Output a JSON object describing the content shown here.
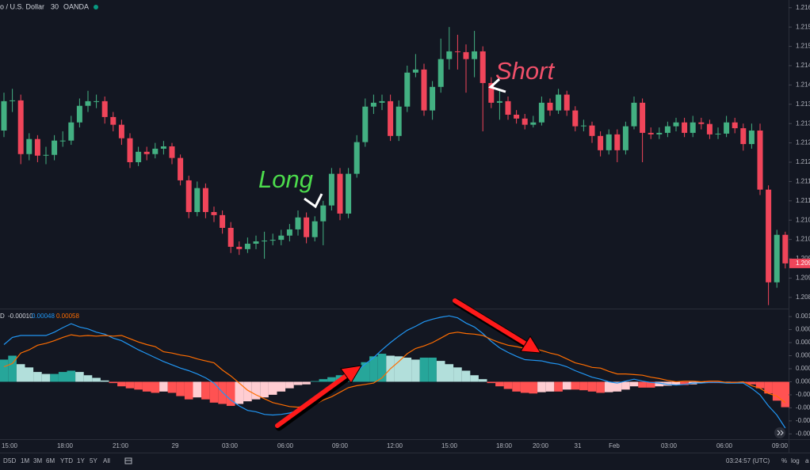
{
  "header": {
    "symbol": "o / U.S. Dollar",
    "interval": "30",
    "source": "OANDA"
  },
  "chart_data": [
    {
      "type": "candlestick",
      "open": [
        1.21282,
        1.21358,
        1.2136,
        1.21221,
        1.2126,
        1.21217,
        1.21219,
        1.21256,
        1.21256,
        1.21303,
        1.21346,
        1.21358,
        1.21358,
        1.21317,
        1.21297,
        1.21262,
        1.212,
        1.21227,
        1.21221,
        1.21235,
        1.21241,
        1.21211,
        1.21153,
        1.21071,
        1.21133,
        1.21071,
        1.21063,
        1.2103,
        1.20981,
        1.20975,
        1.20989,
        1.20995,
        1.20997,
        1.20999,
        1.2101,
        1.21026,
        1.21057,
        1.21006,
        1.21047,
        1.21088,
        1.2117,
        1.21067,
        1.2117,
        1.21252,
        1.21344,
        1.21354,
        1.21358,
        1.21268,
        1.21344,
        1.21432,
        1.2144,
        1.21334,
        1.21395,
        1.21467,
        1.21487,
        1.21485,
        1.21467,
        1.21487,
        1.21405,
        1.21354,
        1.21358,
        1.21323,
        1.21313,
        1.21297,
        1.21303,
        1.21354,
        1.21334,
        1.21375,
        1.21334,
        1.21293,
        1.21295,
        1.21268,
        1.21231,
        1.21272,
        1.21231,
        1.21293,
        1.21354,
        1.21276,
        1.21272,
        1.21276,
        1.21293,
        1.21303,
        1.21276,
        1.21303,
        1.21299,
        1.21272,
        1.21274,
        1.21303,
        1.21288,
        1.21247,
        1.21282,
        1.21129,
        1.20889,
        1.21012
      ],
      "high": [
        1.2138,
        1.2139,
        1.21375,
        1.21275,
        1.2127,
        1.2124,
        1.2127,
        1.2128,
        1.2132,
        1.21365,
        1.21385,
        1.21375,
        1.2137,
        1.2133,
        1.2131,
        1.21275,
        1.2124,
        1.2124,
        1.2125,
        1.21255,
        1.2125,
        1.2122,
        1.21165,
        1.2115,
        1.21145,
        1.21085,
        1.21075,
        1.21045,
        1.20995,
        1.21005,
        1.2101,
        1.2102,
        1.21015,
        1.21025,
        1.2104,
        1.21075,
        1.2107,
        1.2106,
        1.211,
        1.21185,
        1.21185,
        1.21185,
        1.2127,
        1.21365,
        1.21375,
        1.21375,
        1.21375,
        1.2136,
        1.2145,
        1.2148,
        1.21455,
        1.2141,
        1.2152,
        1.2155,
        1.2153,
        1.21505,
        1.2154,
        1.215,
        1.2142,
        1.2139,
        1.2137,
        1.21335,
        1.21325,
        1.2132,
        1.2137,
        1.21365,
        1.2139,
        1.21385,
        1.21345,
        1.2131,
        1.21305,
        1.2128,
        1.21285,
        1.21285,
        1.21305,
        1.2137,
        1.21365,
        1.2129,
        1.2129,
        1.21305,
        1.21315,
        1.21315,
        1.2132,
        1.21315,
        1.2131,
        1.2129,
        1.2132,
        1.21315,
        1.213,
        1.213,
        1.213,
        1.2114,
        1.21025,
        1.2102
      ],
      "low": [
        1.21265,
        1.2133,
        1.21195,
        1.21205,
        1.212,
        1.21195,
        1.21205,
        1.2124,
        1.21245,
        1.2129,
        1.2133,
        1.2134,
        1.213,
        1.2128,
        1.21245,
        1.21185,
        1.2119,
        1.21205,
        1.2121,
        1.2122,
        1.21195,
        1.2114,
        1.21055,
        1.2106,
        1.21055,
        1.21045,
        1.21015,
        1.20965,
        1.2096,
        1.20965,
        1.20975,
        1.2095,
        1.20985,
        1.20985,
        1.20995,
        1.2101,
        1.2099,
        1.20995,
        1.20985,
        1.21075,
        1.2105,
        1.21055,
        1.2116,
        1.2124,
        1.21325,
        1.21335,
        1.21255,
        1.21255,
        1.2133,
        1.2142,
        1.2132,
        1.2131,
        1.2138,
        1.2144,
        1.2144,
        1.2138,
        1.2142,
        1.2128,
        1.2134,
        1.2131,
        1.2131,
        1.213,
        1.21285,
        1.2129,
        1.21295,
        1.2132,
        1.21325,
        1.2132,
        1.2128,
        1.2128,
        1.2125,
        1.21215,
        1.2122,
        1.212,
        1.2122,
        1.21285,
        1.212,
        1.2126,
        1.2126,
        1.21265,
        1.2128,
        1.21265,
        1.21265,
        1.21285,
        1.2126,
        1.2126,
        1.21265,
        1.21275,
        1.2123,
        1.21235,
        1.21115,
        1.2083,
        1.20875,
        1.20925
      ],
      "close": [
        1.21358,
        1.2136,
        1.21221,
        1.2126,
        1.21217,
        1.21219,
        1.21256,
        1.21256,
        1.21303,
        1.21346,
        1.21358,
        1.21358,
        1.21317,
        1.21297,
        1.21262,
        1.212,
        1.21227,
        1.21221,
        1.21235,
        1.21241,
        1.21211,
        1.21153,
        1.21071,
        1.21133,
        1.21071,
        1.21063,
        1.2103,
        1.20981,
        1.20975,
        1.20989,
        1.20995,
        1.20997,
        1.20999,
        1.2101,
        1.21026,
        1.21057,
        1.21006,
        1.21047,
        1.21088,
        1.2117,
        1.21067,
        1.2117,
        1.21252,
        1.21344,
        1.21354,
        1.21358,
        1.21268,
        1.21344,
        1.21432,
        1.2144,
        1.21334,
        1.21395,
        1.21467,
        1.21487,
        1.21485,
        1.21467,
        1.21487,
        1.21405,
        1.21354,
        1.21358,
        1.21323,
        1.21313,
        1.21297,
        1.21303,
        1.21354,
        1.21334,
        1.21375,
        1.21334,
        1.21293,
        1.21295,
        1.21268,
        1.21231,
        1.21272,
        1.21231,
        1.21293,
        1.21354,
        1.21276,
        1.21272,
        1.21276,
        1.21293,
        1.21303,
        1.21276,
        1.21303,
        1.21299,
        1.21272,
        1.21274,
        1.21303,
        1.21288,
        1.21247,
        1.21282,
        1.21129,
        1.20889,
        1.21012,
        1.20938
      ],
      "up_color": "#43b082",
      "down_color": "#f0455a",
      "ylim": [
        1.20821,
        1.2162
      ],
      "yticks": [
        {
          "value": 1.216,
          "label": "1.216"
        },
        {
          "value": 1.2155,
          "label": "1.215"
        },
        {
          "value": 1.215,
          "label": "1.215"
        },
        {
          "value": 1.2145,
          "label": "1.214"
        },
        {
          "value": 1.214,
          "label": "1.214"
        },
        {
          "value": 1.2135,
          "label": "1.213"
        },
        {
          "value": 1.213,
          "label": "1.213"
        },
        {
          "value": 1.2125,
          "label": "1.212"
        },
        {
          "value": 1.212,
          "label": "1.212"
        },
        {
          "value": 1.2115,
          "label": "1.211"
        },
        {
          "value": 1.211,
          "label": "1.211"
        },
        {
          "value": 1.2105,
          "label": "1.210"
        },
        {
          "value": 1.21,
          "label": "1.210"
        },
        {
          "value": 1.2095,
          "label": "1.209"
        },
        {
          "value": 1.209,
          "label": "1.209"
        },
        {
          "value": 1.2085,
          "label": "1.208"
        }
      ],
      "last_label": "1.209",
      "annotations": [
        "Long",
        "Short"
      ],
      "x_labels": [
        "15:00",
        "18:00",
        "21:00",
        "29",
        "03:00",
        "06:00",
        "09:00",
        "12:00",
        "15:00",
        "18:00",
        "20:00",
        "31",
        "Feb",
        "03:00",
        "06:00",
        "09:00"
      ]
    },
    {
      "type": "macd",
      "legend_label": "D",
      "legend_values": [
        "-0.00010",
        "0.00048",
        "0.00058"
      ],
      "histogram": {
        "values": [
          0.00034,
          0.0004,
          0.00027,
          0.00022,
          0.00015,
          0.00012,
          0.00012,
          0.00015,
          0.00017,
          0.00015,
          0.0001,
          6e-05,
          2e-05,
          -2e-05,
          -7e-05,
          -0.0001,
          -0.00012,
          -0.00015,
          -0.00017,
          -0.00015,
          -0.00017,
          -0.00022,
          -0.00027,
          -0.00024,
          -0.00027,
          -0.00032,
          -0.00034,
          -0.00037,
          -0.00034,
          -0.0003,
          -0.00027,
          -0.00024,
          -0.0002,
          -0.00015,
          -0.0001,
          -5e-05,
          -4e-05,
          1e-05,
          4e-05,
          7e-05,
          0.0001,
          0.00015,
          0.00022,
          0.0003,
          0.00039,
          0.00043,
          0.0004,
          0.00039,
          0.00037,
          0.00034,
          0.00037,
          0.00037,
          0.00032,
          0.00027,
          0.00022,
          0.00017,
          0.0001,
          4e-05,
          -2e-05,
          -7e-05,
          -0.00011,
          -0.00015,
          -0.00017,
          -0.00018,
          -0.00016,
          -0.00015,
          -0.00015,
          -0.00012,
          -0.00012,
          -0.00013,
          -0.00015,
          -0.00017,
          -0.00016,
          -0.00015,
          -0.00012,
          -7e-05,
          -9e-05,
          -9e-05,
          -7e-05,
          -6e-05,
          -5e-05,
          -5e-05,
          -4e-05,
          -2e-05,
          -2e-05,
          -2e-05,
          -1e-05,
          -1e-05,
          -2e-05,
          -4e-05,
          -0.0001,
          -0.00018,
          -0.00029,
          -0.00039
        ],
        "colors": {
          "grow_above": "#26a69a",
          "fall_above": "#b2dfdb",
          "grow_below": "#ffcdd2",
          "fall_below": "#ff5252"
        }
      },
      "series": [
        {
          "color": "#2196f3",
          "values": [
            0.00057,
            0.00068,
            0.00071,
            0.00071,
            0.00071,
            0.00071,
            0.00076,
            0.00083,
            0.00089,
            0.00084,
            0.00081,
            0.00076,
            0.00073,
            0.00067,
            0.00063,
            0.00056,
            0.00049,
            0.00043,
            0.00037,
            0.00031,
            0.00026,
            0.00021,
            0.00017,
            0.00012,
            6e-05,
            -2e-05,
            -0.00016,
            -0.00028,
            -0.00037,
            -0.00044,
            -0.00046,
            -0.0005,
            -0.00051,
            -0.0005,
            -0.00048,
            -0.00044,
            -0.0004,
            -0.00034,
            -0.00024,
            -0.00016,
            -6e-05,
            6e-05,
            0.00016,
            0.00027,
            0.00037,
            0.00049,
            0.0006,
            0.0007,
            0.00079,
            0.00085,
            0.00092,
            0.00096,
            0.00099,
            0.00101,
            0.00098,
            0.0009,
            0.00084,
            0.00074,
            0.00062,
            0.00052,
            0.00045,
            0.00039,
            0.00034,
            0.00033,
            0.00032,
            0.00029,
            0.00027,
            0.00023,
            0.00017,
            0.00012,
            7e-05,
            4e-05,
            0,
            -2e-05,
            1e-05,
            4e-05,
            1e-05,
            -1e-05,
            -2e-05,
            -4e-05,
            -5e-05,
            -4e-05,
            -2e-05,
            -2e-05,
            -1e-05,
            -1e-05,
            -2e-05,
            -2e-05,
            -2e-05,
            -0.0001,
            -0.0002,
            -0.00037,
            -0.00051,
            -0.00071
          ]
        },
        {
          "color": "#ff6d00",
          "values": [
            0.00023,
            0.00028,
            0.00044,
            0.00049,
            0.00056,
            0.00059,
            0.00063,
            0.00068,
            0.00072,
            0.0007,
            0.00071,
            0.0007,
            0.00071,
            0.0007,
            0.00071,
            0.00066,
            0.00061,
            0.00057,
            0.00054,
            0.00046,
            0.00044,
            0.00041,
            0.00039,
            0.00035,
            0.00032,
            0.00029,
            0.00018,
            9e-05,
            -2e-05,
            -0.00013,
            -0.0002,
            -0.00026,
            -0.00032,
            -0.00035,
            -0.00038,
            -0.00039,
            -0.00037,
            -0.00035,
            -0.00028,
            -0.00023,
            -0.00016,
            -9e-05,
            -6e-05,
            -4e-05,
            -2e-05,
            6e-05,
            0.0002,
            0.00031,
            0.00043,
            0.00051,
            0.00055,
            0.0006,
            0.00067,
            0.00074,
            0.00076,
            0.00074,
            0.00073,
            0.00071,
            0.00065,
            0.0006,
            0.00056,
            0.00054,
            0.00051,
            0.00051,
            0.00048,
            0.00044,
            0.00041,
            0.00035,
            0.00029,
            0.00026,
            0.00022,
            0.00021,
            0.00016,
            0.00012,
            0.00012,
            0.00011,
            0.0001,
            7e-05,
            5e-05,
            2e-05,
            0,
            1e-05,
            1e-05,
            0,
            1e-05,
            1e-05,
            -1e-05,
            -1e-05,
            0,
            -6e-05,
            -0.0001,
            -0.00018,
            -0.00022,
            -0.00032
          ]
        }
      ],
      "ylim": [
        -0.00088,
        0.00111
      ],
      "yticks": [
        0.001,
        {
          "value": 0.0008,
          "label": "0.000"
        },
        {
          "value": 0.0006,
          "label": "0.000"
        },
        {
          "value": 0.0004,
          "label": "0.000"
        },
        {
          "value": 0.0002,
          "label": "0.000"
        },
        {
          "value": 0,
          "label": "0.000"
        },
        {
          "value": -0.0002,
          "label": "-0.00"
        },
        {
          "value": -0.0004,
          "label": "-0.00"
        },
        {
          "value": -0.0006,
          "label": "-0.00"
        },
        {
          "value": -0.0008,
          "label": "-0.00"
        }
      ]
    }
  ],
  "toolbar": {
    "ranges": [
      "D",
      "5D",
      "1M",
      "3M",
      "6M",
      "YTD",
      "1Y",
      "5Y",
      "All"
    ],
    "clock": "03:24:57 (UTC)",
    "options": [
      "%",
      "log",
      "a"
    ]
  }
}
